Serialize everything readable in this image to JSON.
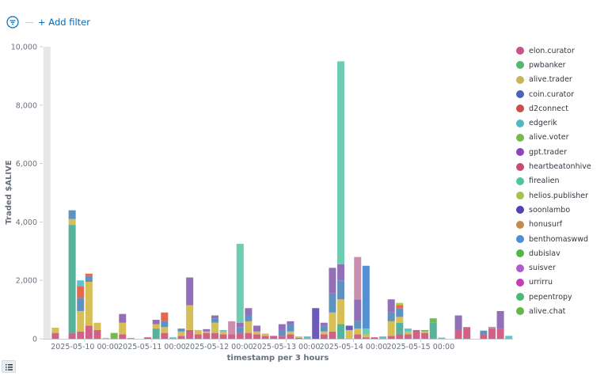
{
  "filter_bar": {
    "add_filter_label": "+ Add filter"
  },
  "chart_data": {
    "type": "bar",
    "stacked": true,
    "ylabel": "Traded $ALIVE",
    "xlabel": "timestamp per 3 hours",
    "ylim": [
      0,
      10000
    ],
    "y_ticks": [
      "0",
      "2,000",
      "4,000",
      "6,000",
      "8,000",
      "10,000"
    ],
    "y_tick_values": [
      0,
      2000,
      4000,
      6000,
      8000,
      10000
    ],
    "x_tick_labels": [
      "2025-05-10 00:00",
      "2025-05-11 00:00",
      "2025-05-12 00:00",
      "2025-05-13 00:00",
      "2025-05-14 00:00",
      "2025-05-15 00:00"
    ],
    "x_tick_indices": [
      5,
      13,
      21,
      29,
      37,
      45
    ],
    "grid": false,
    "legend_position": "right",
    "partial_bucket_indices": [
      0
    ],
    "series": [
      {
        "name": "elon.curator",
        "color": "#D36086"
      },
      {
        "name": "pwbanker",
        "color": "#54B399"
      },
      {
        "name": "alive.trader",
        "color": "#D6BF57"
      },
      {
        "name": "coin.curator",
        "color": "#6092C0"
      },
      {
        "name": "d2connect",
        "color": "#E7664C"
      },
      {
        "name": "edgerik",
        "color": "#59C7C7"
      },
      {
        "name": "alive.voter",
        "color": "#73B94E"
      },
      {
        "name": "gpt.trader",
        "color": "#9170B8"
      },
      {
        "name": "heartbeatonhive",
        "color": "#CA8EAE"
      },
      {
        "name": "firealien",
        "color": "#6DCCB1"
      },
      {
        "name": "helios.publisher",
        "color": "#B0C944"
      },
      {
        "name": "soonlambo",
        "color": "#6C5AB8"
      },
      {
        "name": "honusurf",
        "color": "#DA8B45"
      },
      {
        "name": "benthomaswwd",
        "color": "#5591D0"
      },
      {
        "name": "dubislav",
        "color": "#48B04E"
      },
      {
        "name": "suisver",
        "color": "#B763D4"
      },
      {
        "name": "urrirru",
        "color": "#C43EB5"
      },
      {
        "name": "pepentropy",
        "color": "#7DCF5E"
      },
      {
        "name": "alive.chat",
        "color": "#5CB847"
      }
    ],
    "legend_colors": [
      "#c6538b",
      "#54b96c",
      "#c8b25a",
      "#4c64b4",
      "#c8504c",
      "#51b7c1",
      "#79b94a",
      "#8e44bd",
      "#c84c6e",
      "#50c3a0",
      "#a7c24e",
      "#5441b6",
      "#c8894c",
      "#4f8ed0",
      "#55b544",
      "#b05ccf",
      "#c340b4",
      "#4cb87a",
      "#62b94a"
    ],
    "stacks": [
      [],
      [
        {
          "s": "elon.curator",
          "v": 200
        },
        {
          "s": "alive.trader",
          "v": 180
        }
      ],
      [],
      [
        {
          "s": "elon.curator",
          "v": 200
        },
        {
          "s": "pwbanker",
          "v": 3700
        },
        {
          "s": "alive.trader",
          "v": 200
        },
        {
          "s": "coin.curator",
          "v": 300
        }
      ],
      [
        {
          "s": "elon.curator",
          "v": 250
        },
        {
          "s": "alive.trader",
          "v": 700
        },
        {
          "s": "coin.curator",
          "v": 450
        },
        {
          "s": "d2connect",
          "v": 400
        },
        {
          "s": "edgerik",
          "v": 200
        }
      ],
      [
        {
          "s": "elon.curator",
          "v": 450
        },
        {
          "s": "alive.trader",
          "v": 1500
        },
        {
          "s": "coin.curator",
          "v": 200
        },
        {
          "s": "d2connect",
          "v": 80
        }
      ],
      [
        {
          "s": "elon.curator",
          "v": 300
        },
        {
          "s": "alive.trader",
          "v": 250
        }
      ],
      [
        {
          "s": "alive.trader",
          "v": 30
        }
      ],
      [
        {
          "s": "alive.voter",
          "v": 200
        }
      ],
      [
        {
          "s": "elon.curator",
          "v": 150
        },
        {
          "s": "alive.trader",
          "v": 400
        },
        {
          "s": "gpt.trader",
          "v": 300
        }
      ],
      [
        {
          "s": "heartbeatonhive",
          "v": 30
        }
      ],
      [],
      [
        {
          "s": "elon.curator",
          "v": 50
        }
      ],
      [
        {
          "s": "pwbanker",
          "v": 350
        },
        {
          "s": "alive.trader",
          "v": 150
        },
        {
          "s": "gpt.trader",
          "v": 150
        }
      ],
      [
        {
          "s": "elon.curator",
          "v": 200
        },
        {
          "s": "alive.trader",
          "v": 200
        },
        {
          "s": "coin.curator",
          "v": 200
        },
        {
          "s": "d2connect",
          "v": 300
        }
      ],
      [
        {
          "s": "edgerik",
          "v": 50
        }
      ],
      [
        {
          "s": "elon.curator",
          "v": 100
        },
        {
          "s": "alive.trader",
          "v": 150
        },
        {
          "s": "coin.curator",
          "v": 100
        }
      ],
      [
        {
          "s": "elon.curator",
          "v": 300
        },
        {
          "s": "alive.trader",
          "v": 850
        },
        {
          "s": "gpt.trader",
          "v": 950
        }
      ],
      [
        {
          "s": "elon.curator",
          "v": 150
        },
        {
          "s": "alive.trader",
          "v": 150
        }
      ],
      [
        {
          "s": "elon.curator",
          "v": 200
        },
        {
          "s": "alive.trader",
          "v": 50
        },
        {
          "s": "gpt.trader",
          "v": 80
        }
      ],
      [
        {
          "s": "elon.curator",
          "v": 200
        },
        {
          "s": "alive.trader",
          "v": 350
        },
        {
          "s": "coin.curator",
          "v": 150
        },
        {
          "s": "gpt.trader",
          "v": 100
        }
      ],
      [
        {
          "s": "elon.curator",
          "v": 150
        },
        {
          "s": "alive.trader",
          "v": 100
        },
        {
          "s": "edgerik",
          "v": 50
        }
      ],
      [
        {
          "s": "elon.curator",
          "v": 150
        },
        {
          "s": "heartbeatonhive",
          "v": 450
        }
      ],
      [
        {
          "s": "elon.curator",
          "v": 200
        },
        {
          "s": "coin.curator",
          "v": 200
        },
        {
          "s": "gpt.trader",
          "v": 150
        },
        {
          "s": "firealien",
          "v": 2700
        }
      ],
      [
        {
          "s": "elon.curator",
          "v": 200
        },
        {
          "s": "alive.trader",
          "v": 400
        },
        {
          "s": "coin.curator",
          "v": 200
        },
        {
          "s": "gpt.trader",
          "v": 250
        }
      ],
      [
        {
          "s": "elon.curator",
          "v": 150
        },
        {
          "s": "alive.trader",
          "v": 100
        },
        {
          "s": "gpt.trader",
          "v": 200
        }
      ],
      [
        {
          "s": "elon.curator",
          "v": 100
        },
        {
          "s": "alive.trader",
          "v": 80
        }
      ],
      [
        {
          "s": "elon.curator",
          "v": 100
        }
      ],
      [
        {
          "s": "elon.curator",
          "v": 100
        },
        {
          "s": "coin.curator",
          "v": 200
        },
        {
          "s": "gpt.trader",
          "v": 200
        }
      ],
      [
        {
          "s": "elon.curator",
          "v": 150
        },
        {
          "s": "alive.trader",
          "v": 100
        },
        {
          "s": "coin.curator",
          "v": 250
        },
        {
          "s": "gpt.trader",
          "v": 100
        }
      ],
      [
        {
          "s": "elon.curator",
          "v": 30
        },
        {
          "s": "alive.trader",
          "v": 50
        }
      ],
      [
        {
          "s": "edgerik",
          "v": 80
        }
      ],
      [
        {
          "s": "soonlambo",
          "v": 1050
        }
      ],
      [
        {
          "s": "elon.curator",
          "v": 150
        },
        {
          "s": "alive.trader",
          "v": 100
        },
        {
          "s": "coin.curator",
          "v": 200
        },
        {
          "s": "gpt.trader",
          "v": 100
        }
      ],
      [
        {
          "s": "elon.curator",
          "v": 250
        },
        {
          "s": "alive.trader",
          "v": 650
        },
        {
          "s": "coin.curator",
          "v": 650
        },
        {
          "s": "gpt.trader",
          "v": 880
        }
      ],
      [
        {
          "s": "pwbanker",
          "v": 500
        },
        {
          "s": "alive.trader",
          "v": 850
        },
        {
          "s": "coin.curator",
          "v": 650
        },
        {
          "s": "gpt.trader",
          "v": 550
        },
        {
          "s": "firealien",
          "v": 6950
        }
      ],
      [
        {
          "s": "alive.trader",
          "v": 300
        },
        {
          "s": "soonlambo",
          "v": 150
        }
      ],
      [
        {
          "s": "elon.curator",
          "v": 150
        },
        {
          "s": "alive.trader",
          "v": 200
        },
        {
          "s": "coin.curator",
          "v": 250
        },
        {
          "s": "gpt.trader",
          "v": 750
        },
        {
          "s": "heartbeatonhive",
          "v": 1450
        }
      ],
      [
        {
          "s": "elon.curator",
          "v": 50
        },
        {
          "s": "alive.trader",
          "v": 100
        },
        {
          "s": "firealien",
          "v": 200
        },
        {
          "s": "benthomaswwd",
          "v": 2150
        }
      ],
      [
        {
          "s": "elon.curator",
          "v": 50
        }
      ],
      [
        {
          "s": "edgerik",
          "v": 80
        }
      ],
      [
        {
          "s": "elon.curator",
          "v": 100
        },
        {
          "s": "alive.trader",
          "v": 500
        },
        {
          "s": "coin.curator",
          "v": 300
        },
        {
          "s": "gpt.trader",
          "v": 450
        }
      ],
      [
        {
          "s": "elon.curator",
          "v": 150
        },
        {
          "s": "pwbanker",
          "v": 400
        },
        {
          "s": "alive.trader",
          "v": 200
        },
        {
          "s": "coin.curator",
          "v": 300
        },
        {
          "s": "d2connect",
          "v": 100
        },
        {
          "s": "helios.publisher",
          "v": 80
        }
      ],
      [
        {
          "s": "elon.curator",
          "v": 150
        },
        {
          "s": "alive.trader",
          "v": 100
        },
        {
          "s": "edgerik",
          "v": 100
        }
      ],
      [
        {
          "s": "elon.curator",
          "v": 300
        }
      ],
      [
        {
          "s": "elon.curator",
          "v": 200
        },
        {
          "s": "alive.trader",
          "v": 50
        },
        {
          "s": "alive.voter",
          "v": 50
        }
      ],
      [
        {
          "s": "pwbanker",
          "v": 550
        },
        {
          "s": "alive.voter",
          "v": 150
        }
      ],
      [
        {
          "s": "edgerik",
          "v": 40
        }
      ],
      [],
      [
        {
          "s": "elon.curator",
          "v": 300
        },
        {
          "s": "gpt.trader",
          "v": 500
        }
      ],
      [
        {
          "s": "elon.curator",
          "v": 400
        }
      ],
      [],
      [
        {
          "s": "elon.curator",
          "v": 150
        },
        {
          "s": "coin.curator",
          "v": 130
        }
      ],
      [
        {
          "s": "elon.curator",
          "v": 350
        },
        {
          "s": "heartbeatonhive",
          "v": 60
        }
      ],
      [
        {
          "s": "elon.curator",
          "v": 350
        },
        {
          "s": "gpt.trader",
          "v": 600
        }
      ],
      [
        {
          "s": "edgerik",
          "v": 100
        }
      ]
    ]
  }
}
